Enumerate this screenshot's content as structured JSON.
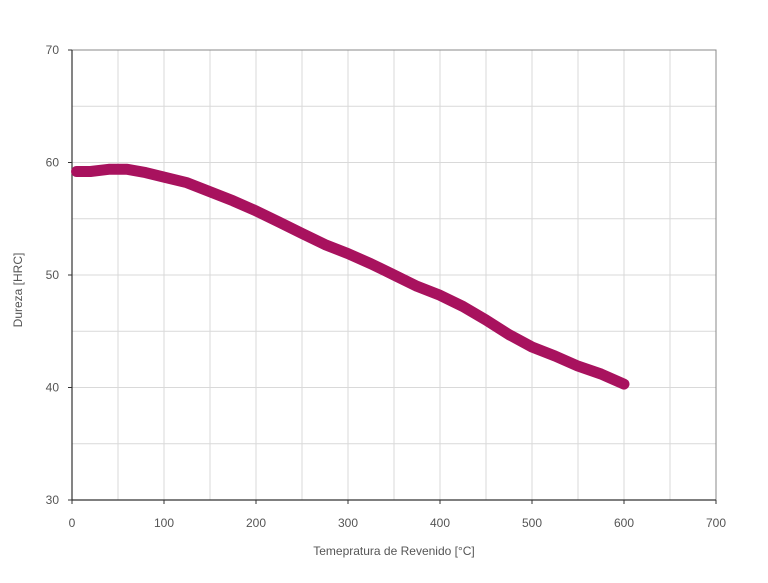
{
  "chart_data": {
    "type": "line",
    "title": "",
    "xlabel": "Temepratura de Revenido [°C]",
    "ylabel": "Dureza [HRC]",
    "xlim": [
      0,
      700
    ],
    "ylim": [
      30,
      70
    ],
    "xticks": [
      "0",
      "100",
      "200",
      "300",
      "400",
      "500",
      "600",
      "700"
    ],
    "yticks": [
      "30",
      "40",
      "50",
      "60",
      "70"
    ],
    "grid": true,
    "legend": "none",
    "colors": {
      "line": "#A8125E",
      "grid": "#d9d9d9",
      "axis": "#333333"
    },
    "series": [
      {
        "x": [
          5,
          20,
          40,
          60,
          80,
          100,
          125,
          150,
          175,
          200,
          225,
          250,
          275,
          300,
          325,
          350,
          375,
          400,
          425,
          450,
          475,
          500,
          525,
          550,
          575,
          600
        ],
        "y": [
          59.2,
          59.2,
          59.4,
          59.4,
          59.1,
          58.7,
          58.2,
          57.4,
          56.6,
          55.7,
          54.7,
          53.7,
          52.7,
          51.9,
          51.0,
          50.0,
          49.0,
          48.2,
          47.2,
          46.0,
          44.7,
          43.6,
          42.8,
          41.9,
          41.2,
          40.3
        ]
      }
    ]
  }
}
